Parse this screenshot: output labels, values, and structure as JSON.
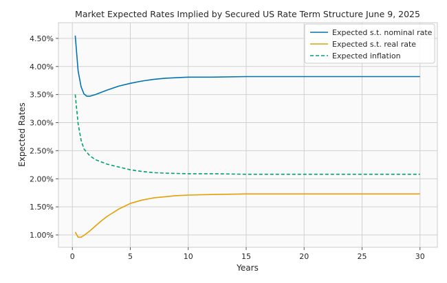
{
  "chart_data": {
    "type": "line",
    "title": "Market Expected Rates Implied by Secured US Rate Term Structure June 9, 2025",
    "xlabel": "Years",
    "ylabel": "Expected Rates",
    "xlim": [
      -1.2,
      31.5
    ],
    "ylim": [
      0.0078,
      0.0478
    ],
    "xticks": [
      0,
      5,
      10,
      15,
      20,
      25,
      30
    ],
    "xtick_labels": [
      "0",
      "5",
      "10",
      "15",
      "20",
      "25",
      "30"
    ],
    "yticks": [
      0.01,
      0.015,
      0.02,
      0.025,
      0.03,
      0.035,
      0.04,
      0.045
    ],
    "ytick_labels": [
      "1.00%",
      "1.50%",
      "2.00%",
      "2.50%",
      "3.00%",
      "3.50%",
      "4.00%",
      "4.50%"
    ],
    "grid": true,
    "legend_position": "top-right",
    "series": [
      {
        "name": "Expected s.t. nominal rate",
        "color": "#0072b2",
        "style": "solid",
        "points": [
          [
            0.25,
            0.0455
          ],
          [
            0.5,
            0.0392
          ],
          [
            0.75,
            0.0364
          ],
          [
            1.0,
            0.0351
          ],
          [
            1.25,
            0.0347
          ],
          [
            1.5,
            0.0347
          ],
          [
            2.0,
            0.035
          ],
          [
            2.5,
            0.0354
          ],
          [
            3.0,
            0.0358
          ],
          [
            4.0,
            0.0365
          ],
          [
            5.0,
            0.037
          ],
          [
            6.0,
            0.0374
          ],
          [
            7.0,
            0.0377
          ],
          [
            8.0,
            0.0379
          ],
          [
            9.0,
            0.038
          ],
          [
            10.0,
            0.0381
          ],
          [
            12.0,
            0.0381
          ],
          [
            15.0,
            0.0382
          ],
          [
            20.0,
            0.0382
          ],
          [
            25.0,
            0.0382
          ],
          [
            30.0,
            0.0382
          ]
        ]
      },
      {
        "name": "Expected s.t. real rate",
        "color": "#e69f00",
        "style": "solid",
        "points": [
          [
            0.25,
            0.0105
          ],
          [
            0.5,
            0.0096
          ],
          [
            0.75,
            0.0096
          ],
          [
            1.0,
            0.0099
          ],
          [
            1.5,
            0.0107
          ],
          [
            2.0,
            0.0116
          ],
          [
            2.5,
            0.0125
          ],
          [
            3.0,
            0.0133
          ],
          [
            4.0,
            0.0146
          ],
          [
            5.0,
            0.0156
          ],
          [
            6.0,
            0.0162
          ],
          [
            7.0,
            0.0166
          ],
          [
            8.0,
            0.0168
          ],
          [
            9.0,
            0.017
          ],
          [
            10.0,
            0.0171
          ],
          [
            12.0,
            0.0172
          ],
          [
            15.0,
            0.0173
          ],
          [
            20.0,
            0.0173
          ],
          [
            25.0,
            0.0173
          ],
          [
            30.0,
            0.0173
          ]
        ]
      },
      {
        "name": "Expected inflation",
        "color": "#009e73",
        "style": "dashed",
        "points": [
          [
            0.25,
            0.035
          ],
          [
            0.5,
            0.0298
          ],
          [
            0.75,
            0.0269
          ],
          [
            1.0,
            0.0253
          ],
          [
            1.5,
            0.0241
          ],
          [
            2.0,
            0.0234
          ],
          [
            3.0,
            0.0226
          ],
          [
            4.0,
            0.0221
          ],
          [
            5.0,
            0.0216
          ],
          [
            6.0,
            0.0213
          ],
          [
            7.0,
            0.0211
          ],
          [
            8.0,
            0.021
          ],
          [
            10.0,
            0.0209
          ],
          [
            12.0,
            0.0209
          ],
          [
            15.0,
            0.0208
          ],
          [
            20.0,
            0.0208
          ],
          [
            25.0,
            0.0208
          ],
          [
            30.0,
            0.0208
          ]
        ]
      }
    ]
  }
}
